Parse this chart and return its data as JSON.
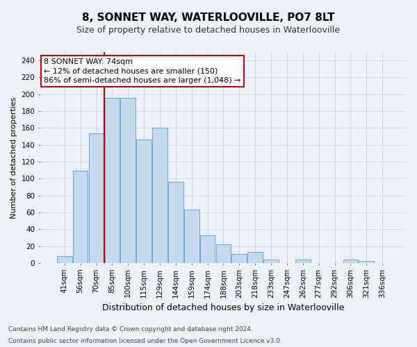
{
  "title": "8, SONNET WAY, WATERLOOVILLE, PO7 8LT",
  "subtitle": "Size of property relative to detached houses in Waterlooville",
  "xlabel": "Distribution of detached houses by size in Waterlooville",
  "ylabel": "Number of detached properties",
  "footnote1": "Contains HM Land Registry data © Crown copyright and database right 2024.",
  "footnote2": "Contains public sector information licensed under the Open Government Licence v3.0.",
  "bar_labels": [
    "41sqm",
    "56sqm",
    "70sqm",
    "85sqm",
    "100sqm",
    "115sqm",
    "129sqm",
    "144sqm",
    "159sqm",
    "174sqm",
    "188sqm",
    "203sqm",
    "218sqm",
    "233sqm",
    "247sqm",
    "262sqm",
    "277sqm",
    "292sqm",
    "306sqm",
    "321sqm",
    "336sqm"
  ],
  "bar_values": [
    8,
    109,
    154,
    196,
    196,
    146,
    160,
    96,
    63,
    33,
    22,
    11,
    13,
    4,
    0,
    4,
    0,
    0,
    4,
    2,
    0
  ],
  "bar_color": "#c5d9f0",
  "bar_edge_color": "#6baed6",
  "ylim": [
    0,
    250
  ],
  "yticks": [
    0,
    20,
    40,
    60,
    80,
    100,
    120,
    140,
    160,
    180,
    200,
    220,
    240
  ],
  "property_line_bar_index": 2,
  "annotation_title": "8 SONNET WAY: 74sqm",
  "annotation_line1": "← 12% of detached houses are smaller (150)",
  "annotation_line2": "86% of semi-detached houses are larger (1,048) →",
  "annotation_box_color": "#ffffff",
  "annotation_box_edge": "#cc0000",
  "property_line_color": "#cc0000",
  "grid_color": "#d0daea",
  "background_color": "#eef2f8",
  "title_fontsize": 11,
  "subtitle_fontsize": 9,
  "tick_fontsize": 7.5,
  "ylabel_fontsize": 8,
  "xlabel_fontsize": 9,
  "footnote_fontsize": 6.5
}
